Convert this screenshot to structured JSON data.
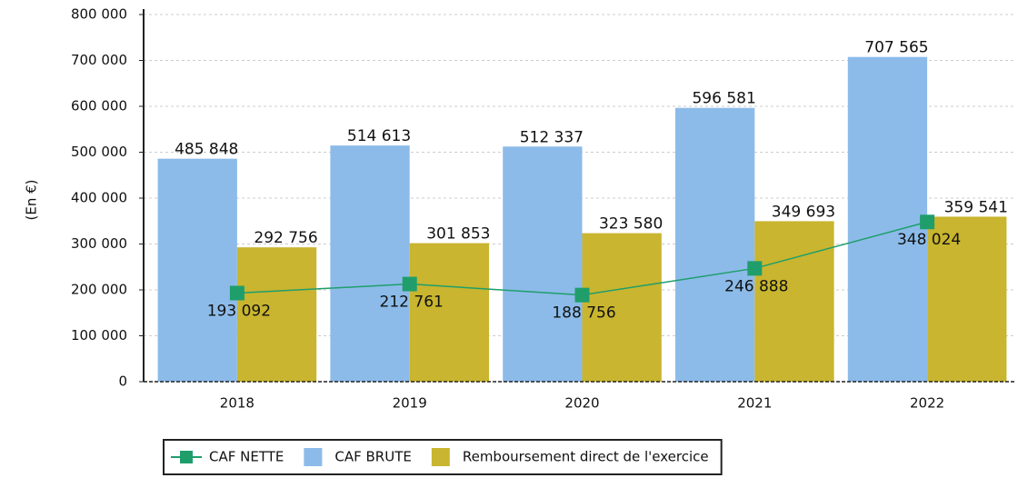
{
  "chart_data": {
    "type": "bar",
    "y_label": "(En €)",
    "categories": [
      "2018",
      "2019",
      "2020",
      "2021",
      "2022"
    ],
    "series": [
      {
        "name": "CAF NETTE",
        "type": "line",
        "color": "#1f9e6c",
        "values": [
          193092,
          212761,
          188756,
          246888,
          348024
        ],
        "value_labels": [
          "193 092",
          "212 761",
          "188 756",
          "246 888",
          "348 024"
        ]
      },
      {
        "name": "CAF BRUTE",
        "type": "bar",
        "color": "#8cbbe9",
        "values": [
          485848,
          514613,
          512337,
          596581,
          707565
        ],
        "value_labels": [
          "485 848",
          "514 613",
          "512 337",
          "596 581",
          "707 565"
        ]
      },
      {
        "name": "Remboursement direct de l'exercice",
        "type": "bar",
        "color": "#c9b52f",
        "values": [
          292756,
          301853,
          323580,
          349693,
          359541
        ],
        "value_labels": [
          "292 756",
          "301 853",
          "323 580",
          "349 693",
          "359 541"
        ]
      }
    ],
    "ylim": [
      0,
      800000
    ],
    "yticks": [
      0,
      {
        "value": 100000,
        "label": "100 000"
      },
      {
        "value": 200000,
        "label": "200 000"
      },
      {
        "value": 300000,
        "label": "300 000"
      },
      {
        "value": 400000,
        "label": "400 000"
      },
      {
        "value": 500000,
        "label": "500 000"
      },
      {
        "value": 600000,
        "label": "600 000"
      },
      {
        "value": 700000,
        "label": "700 000"
      },
      {
        "value": 800000,
        "label": "800 000"
      }
    ],
    "grid": true,
    "legend": "bottom"
  }
}
